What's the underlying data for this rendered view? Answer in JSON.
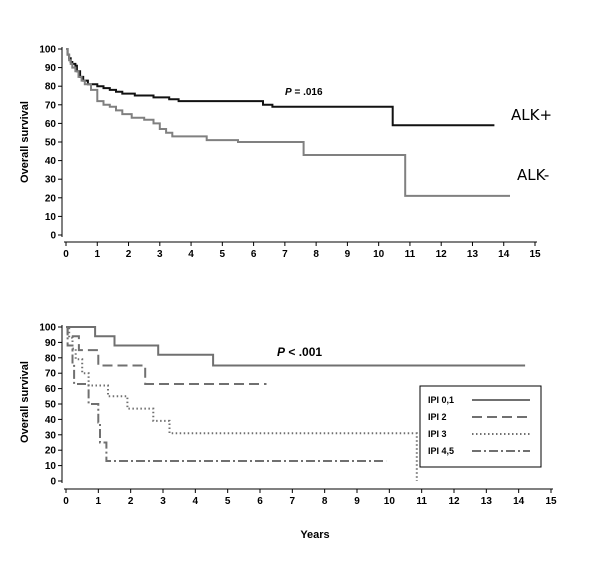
{
  "chart_data": [
    {
      "type": "line",
      "step": true,
      "ylabel": "Overall survival",
      "xlabel": "",
      "xlim": [
        0,
        15
      ],
      "ylim": [
        0,
        100
      ],
      "x_ticks": [
        "0",
        "1",
        "2",
        "3",
        "4",
        "5",
        "6",
        "7",
        "8",
        "9",
        "10",
        "11",
        "12",
        "13",
        "14",
        "15"
      ],
      "y_ticks": [
        "0",
        "10",
        "20",
        "30",
        "40",
        "50",
        "60",
        "70",
        "80",
        "90",
        "100"
      ],
      "annotation": {
        "p_label": "P",
        "p_rest": " = .016"
      },
      "series": [
        {
          "name": "ALK+",
          "color": "#111111",
          "points": [
            [
              0,
              100
            ],
            [
              0.05,
              97
            ],
            [
              0.1,
              95
            ],
            [
              0.15,
              93
            ],
            [
              0.2,
              92
            ],
            [
              0.3,
              91
            ],
            [
              0.35,
              88
            ],
            [
              0.45,
              85
            ],
            [
              0.55,
              83
            ],
            [
              0.7,
              81
            ],
            [
              1.0,
              80
            ],
            [
              1.2,
              79
            ],
            [
              1.4,
              78
            ],
            [
              1.6,
              77
            ],
            [
              1.8,
              76
            ],
            [
              2.2,
              75
            ],
            [
              2.8,
              74
            ],
            [
              3.3,
              73
            ],
            [
              3.6,
              72
            ],
            [
              4.0,
              72
            ],
            [
              6.3,
              70
            ],
            [
              6.6,
              69
            ],
            [
              10.4,
              69
            ],
            [
              10.45,
              59
            ],
            [
              13.7,
              59
            ]
          ]
        },
        {
          "name": "ALK-",
          "color": "#808080",
          "points": [
            [
              0,
              100
            ],
            [
              0.05,
              97
            ],
            [
              0.1,
              94
            ],
            [
              0.15,
              92
            ],
            [
              0.2,
              90
            ],
            [
              0.3,
              88
            ],
            [
              0.4,
              85
            ],
            [
              0.5,
              83
            ],
            [
              0.6,
              81
            ],
            [
              0.8,
              78
            ],
            [
              1.0,
              72
            ],
            [
              1.2,
              70
            ],
            [
              1.4,
              69
            ],
            [
              1.6,
              67
            ],
            [
              1.8,
              65
            ],
            [
              2.1,
              63
            ],
            [
              2.5,
              62
            ],
            [
              2.8,
              60
            ],
            [
              3.0,
              57
            ],
            [
              3.2,
              55
            ],
            [
              3.4,
              53
            ],
            [
              4.5,
              51
            ],
            [
              5.5,
              50
            ],
            [
              7.5,
              50
            ],
            [
              7.6,
              43
            ],
            [
              10.8,
              43
            ],
            [
              10.85,
              21
            ],
            [
              14.2,
              21
            ]
          ]
        }
      ]
    },
    {
      "type": "line",
      "step": true,
      "ylabel": "Overall survival",
      "xlabel": "Years",
      "xlim": [
        0,
        15
      ],
      "ylim": [
        0,
        100
      ],
      "x_ticks": [
        "0",
        "1",
        "2",
        "3",
        "4",
        "5",
        "6",
        "7",
        "8",
        "9",
        "10",
        "11",
        "12",
        "13",
        "14",
        "15"
      ],
      "y_ticks": [
        "0",
        "10",
        "20",
        "30",
        "40",
        "50",
        "60",
        "70",
        "80",
        "90",
        "100"
      ],
      "annotation": {
        "p_label": "P",
        "p_rest": " < .001"
      },
      "legend_position": "right",
      "series": [
        {
          "name": "IPI 0,1",
          "color": "#707070",
          "dash": "",
          "points": [
            [
              0,
              100
            ],
            [
              0.8,
              100
            ],
            [
              0.9,
              94
            ],
            [
              1.5,
              88
            ],
            [
              2.8,
              88
            ],
            [
              2.85,
              82
            ],
            [
              4.5,
              82
            ],
            [
              4.55,
              75
            ],
            [
              14.2,
              75
            ]
          ]
        },
        {
          "name": "IPI 2",
          "color": "#707070",
          "dash": "10,5",
          "points": [
            [
              0,
              100
            ],
            [
              0.05,
              94
            ],
            [
              0.3,
              94
            ],
            [
              0.4,
              85
            ],
            [
              0.9,
              85
            ],
            [
              1.0,
              75
            ],
            [
              2.4,
              75
            ],
            [
              2.45,
              63
            ],
            [
              6.2,
              63
            ]
          ]
        },
        {
          "name": "IPI 3",
          "color": "#707070",
          "dash": "1.5,2.5",
          "points": [
            [
              0,
              100
            ],
            [
              0.1,
              93
            ],
            [
              0.2,
              86
            ],
            [
              0.3,
              79
            ],
            [
              0.5,
              70
            ],
            [
              0.7,
              62
            ],
            [
              1.2,
              62
            ],
            [
              1.3,
              55
            ],
            [
              1.8,
              55
            ],
            [
              1.9,
              47
            ],
            [
              2.6,
              47
            ],
            [
              2.7,
              39
            ],
            [
              3.1,
              39
            ],
            [
              3.2,
              31
            ],
            [
              10.8,
              31
            ],
            [
              10.85,
              0
            ]
          ]
        },
        {
          "name": "IPI 4,5",
          "color": "#707070",
          "dash": "9,3,2,3",
          "points": [
            [
              0,
              100
            ],
            [
              0.05,
              88
            ],
            [
              0.2,
              76
            ],
            [
              0.25,
              63
            ],
            [
              0.6,
              63
            ],
            [
              0.7,
              50
            ],
            [
              0.9,
              50
            ],
            [
              1.0,
              38
            ],
            [
              1.05,
              25
            ],
            [
              1.2,
              25
            ],
            [
              1.25,
              13
            ],
            [
              9.9,
              13
            ]
          ]
        }
      ]
    }
  ]
}
